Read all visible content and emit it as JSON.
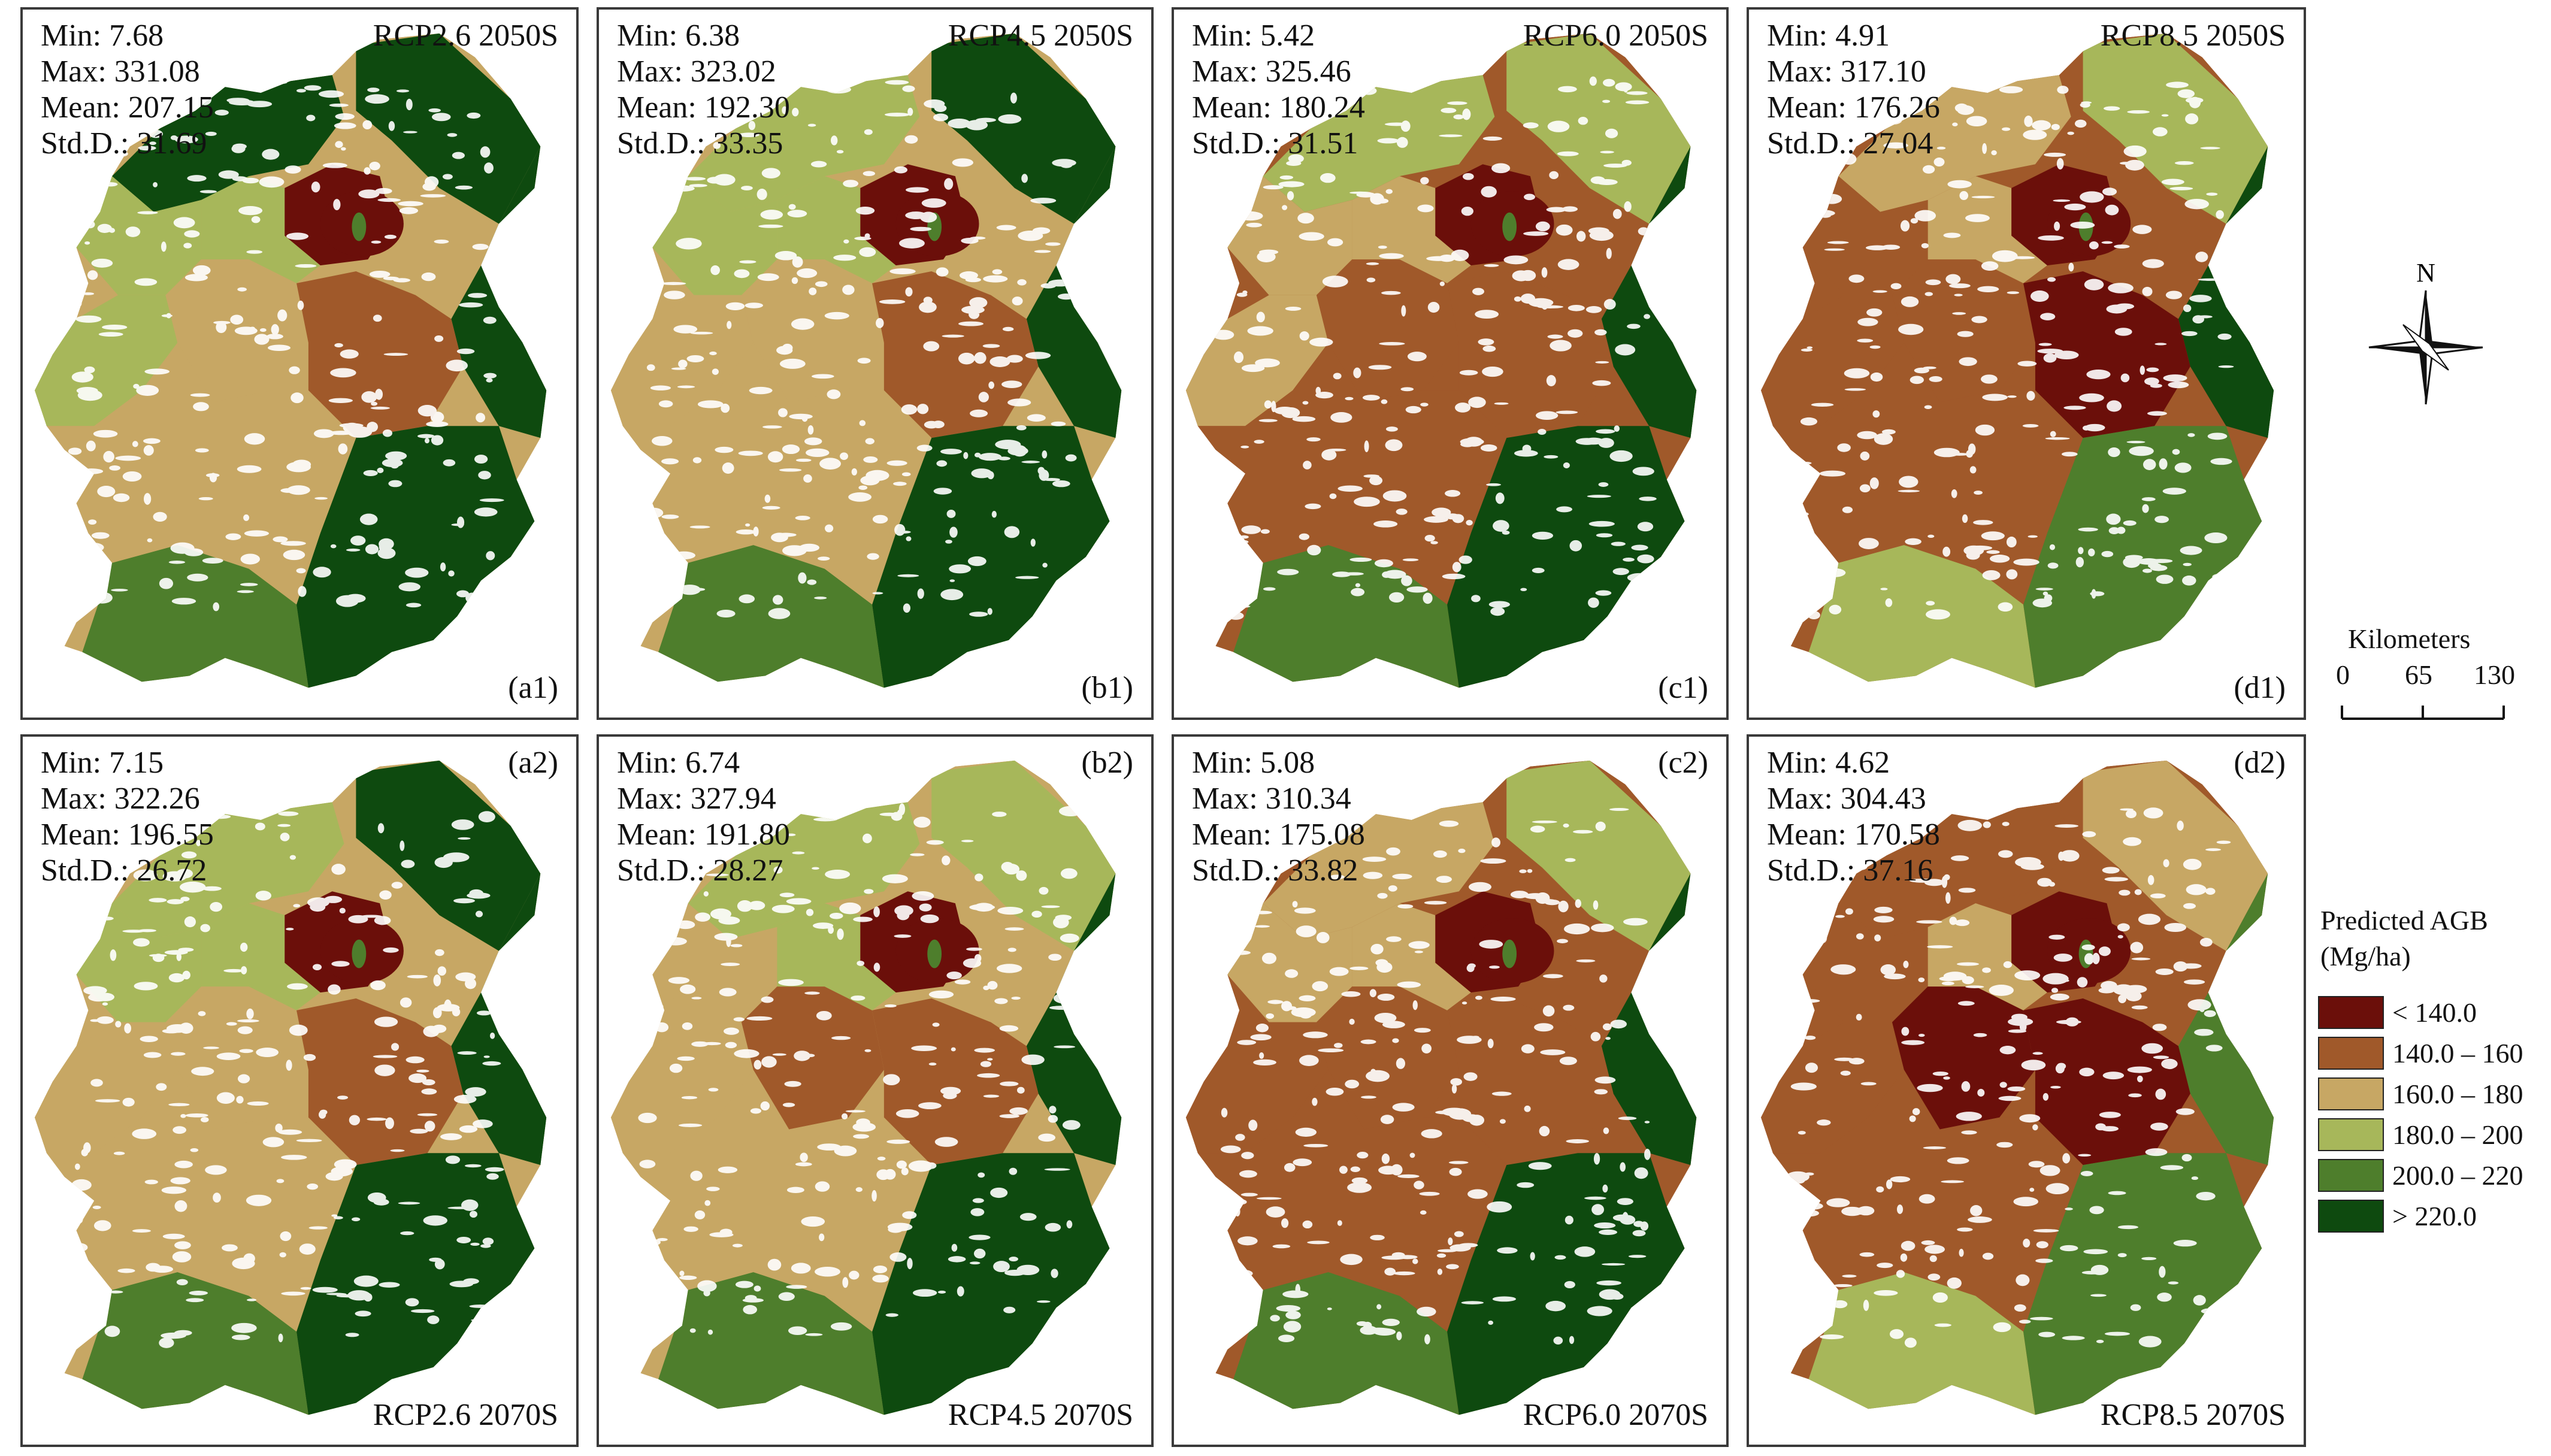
{
  "colors": {
    "lt140": "#6b0f0a",
    "c140_160": "#a0592a",
    "c160_180": "#c7a764",
    "c180_200": "#a7b75a",
    "c200_220": "#4e7e2c",
    "gt220": "#0e4a0f"
  },
  "panels": [
    {
      "id": "a1",
      "label": "(a1)",
      "scenario": "RCP2.6 2050S",
      "scenario_pos": "top",
      "label_pos": "bottom",
      "min": "Min: 7.68",
      "max": "Max: 331.08",
      "mean": "Mean: 207.15",
      "std": "Std.D.: 31.69",
      "classes": [
        "gt220",
        "gt220",
        "c180_200",
        "gt220",
        "c200_220",
        "c180_200",
        "c160_180",
        "c140_160",
        "lt140",
        "c180_200",
        "gt220",
        "c160_180"
      ]
    },
    {
      "id": "b1",
      "label": "(b1)",
      "scenario": "RCP4.5 2050S",
      "scenario_pos": "top",
      "label_pos": "bottom",
      "min": "Min: 6.38",
      "max": "Max: 323.02",
      "mean": "Mean: 192.30",
      "std": "Std.D.: 33.35",
      "classes": [
        "gt220",
        "c180_200",
        "c180_200",
        "gt220",
        "c200_220",
        "c160_180",
        "c160_180",
        "c140_160",
        "lt140",
        "c180_200",
        "gt220",
        "c160_180"
      ]
    },
    {
      "id": "c1",
      "label": "(c1)",
      "scenario": "RCP6.0 2050S",
      "scenario_pos": "top",
      "label_pos": "bottom",
      "min": "Min: 5.42",
      "max": "Max: 325.46",
      "mean": "Mean: 180.24",
      "std": "Std.D.: 31.51",
      "classes": [
        "c180_200",
        "c180_200",
        "c160_180",
        "gt220",
        "c200_220",
        "c160_180",
        "c140_160",
        "c140_160",
        "lt140",
        "c160_180",
        "gt220",
        "c140_160"
      ]
    },
    {
      "id": "d1",
      "label": "(d1)",
      "scenario": "RCP8.5 2050S",
      "scenario_pos": "top",
      "label_pos": "bottom",
      "min": "Min: 4.91",
      "max": "Max: 317.10",
      "mean": "Mean: 176.26",
      "std": "Std.D.: 27.04",
      "classes": [
        "c180_200",
        "c160_180",
        "c140_160",
        "gt220",
        "c180_200",
        "c140_160",
        "c140_160",
        "lt140",
        "lt140",
        "c160_180",
        "c200_220",
        "c140_160"
      ]
    },
    {
      "id": "a2",
      "label": "(a2)",
      "scenario": "RCP2.6 2070S",
      "scenario_pos": "bottom",
      "label_pos": "top",
      "min": "Min: 7.15",
      "max": "Max: 322.26",
      "mean": "Mean: 196.55",
      "std": "Std.D.: 26.72",
      "classes": [
        "gt220",
        "c180_200",
        "c180_200",
        "gt220",
        "c200_220",
        "c160_180",
        "c160_180",
        "c140_160",
        "lt140",
        "c180_200",
        "gt220",
        "c160_180"
      ]
    },
    {
      "id": "b2",
      "label": "(b2)",
      "scenario": "RCP4.5 2070S",
      "scenario_pos": "bottom",
      "label_pos": "top",
      "min": "Min: 6.74",
      "max": "Max: 327.94",
      "mean": "Mean: 191.80",
      "std": "Std.D.: 28.27",
      "classes": [
        "c180_200",
        "c180_200",
        "c160_180",
        "gt220",
        "c200_220",
        "c160_180",
        "c140_160",
        "c140_160",
        "lt140",
        "c180_200",
        "gt220",
        "c160_180"
      ]
    },
    {
      "id": "c2",
      "label": "(c2)",
      "scenario": "RCP6.0 2070S",
      "scenario_pos": "bottom",
      "label_pos": "top",
      "min": "Min: 5.08",
      "max": "Max: 310.34",
      "mean": "Mean: 175.08",
      "std": "Std.D.: 33.82",
      "classes": [
        "c180_200",
        "c160_180",
        "c160_180",
        "gt220",
        "c200_220",
        "c140_160",
        "c140_160",
        "c140_160",
        "lt140",
        "c160_180",
        "gt220",
        "c140_160"
      ]
    },
    {
      "id": "d2",
      "label": "(d2)",
      "scenario": "RCP8.5 2070S",
      "scenario_pos": "bottom",
      "label_pos": "top",
      "min": "Min: 4.62",
      "max": "Max: 304.43",
      "mean": "Mean: 170.58",
      "std": "Std.D.: 37.16",
      "classes": [
        "c160_180",
        "c140_160",
        "c140_160",
        "c200_220",
        "c180_200",
        "c140_160",
        "lt140",
        "lt140",
        "lt140",
        "c160_180",
        "c200_220",
        "c140_160"
      ]
    }
  ],
  "north": {
    "label": "N"
  },
  "scalebar": {
    "title": "Kilometers",
    "ticks": [
      "0",
      "65",
      "130"
    ]
  },
  "legend": {
    "title_line1": "Predicted AGB",
    "title_line2": "(Mg/ha)",
    "items": [
      {
        "label": "< 140.0",
        "color_key": "lt140"
      },
      {
        "label": "140.0 – 160",
        "color_key": "c140_160"
      },
      {
        "label": "160.0 – 180",
        "color_key": "c160_180"
      },
      {
        "label": "180.0 – 200",
        "color_key": "c180_200"
      },
      {
        "label": "200.0 – 220",
        "color_key": "c200_220"
      },
      {
        "label": "> 220.0",
        "color_key": "gt220"
      }
    ]
  }
}
